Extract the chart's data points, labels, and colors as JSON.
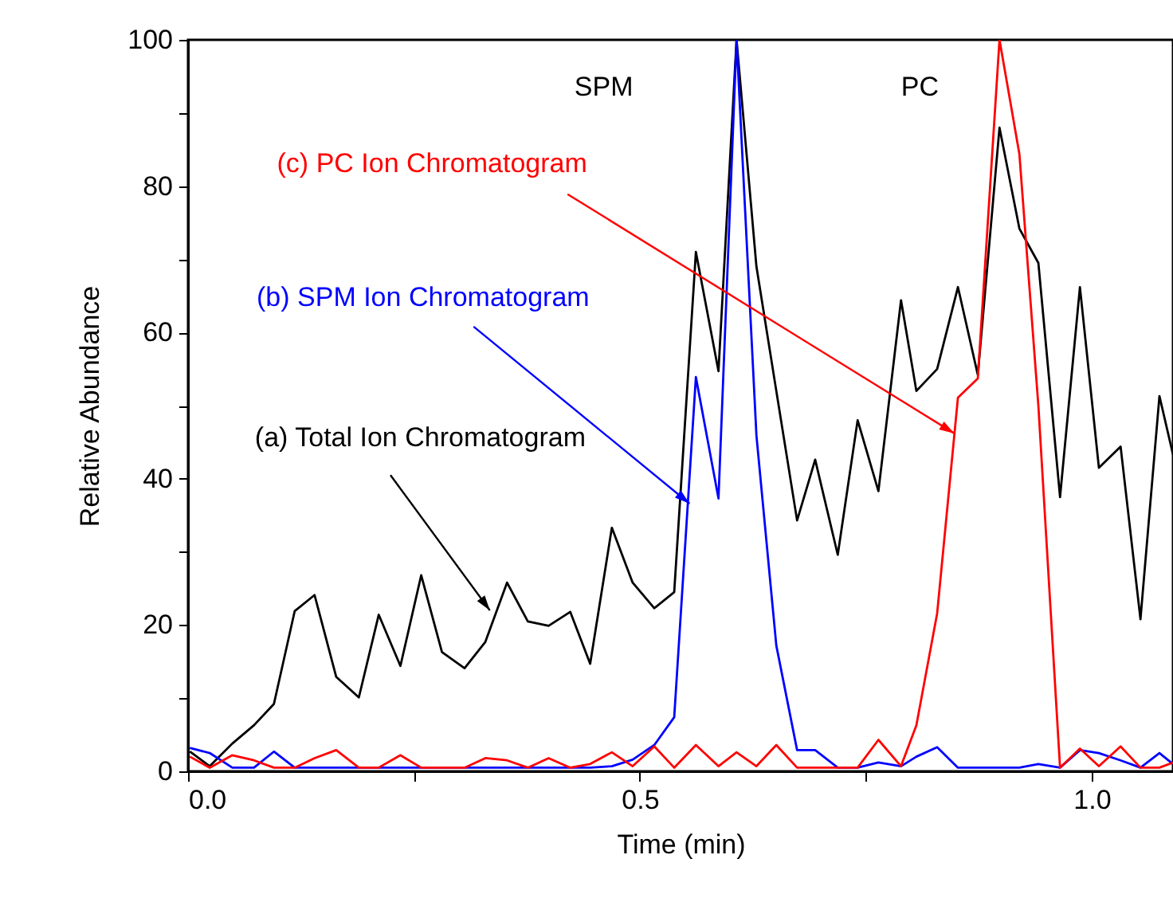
{
  "chart_data": {
    "type": "line",
    "xlabel": "Time (min)",
    "ylabel": "Relative Abundance",
    "x": [
      0.002,
      0.024,
      0.049,
      0.073,
      0.095,
      0.118,
      0.14,
      0.164,
      0.189,
      0.211,
      0.235,
      0.258,
      0.281,
      0.306,
      0.329,
      0.353,
      0.376,
      0.399,
      0.423,
      0.445,
      0.469,
      0.492,
      0.516,
      0.538,
      0.562,
      0.587,
      0.607,
      0.629,
      0.651,
      0.674,
      0.694,
      0.719,
      0.741,
      0.764,
      0.789,
      0.806,
      0.829,
      0.852,
      0.874,
      0.898,
      0.92,
      0.941,
      0.965,
      0.987,
      1.008,
      1.032,
      1.054,
      1.075,
      1.09
    ],
    "series": [
      {
        "color": "#000000",
        "values": [
          2.7,
          0.7,
          3.8,
          6.3,
          9.2,
          21.9,
          24.1,
          12.9,
          10.1,
          21.4,
          14.4,
          26.8,
          16.3,
          14.1,
          17.7,
          25.8,
          20.5,
          19.9,
          21.8,
          14.7,
          33.3,
          25.8,
          22.3,
          24.5,
          71,
          54.7,
          100,
          69,
          52,
          34.3,
          42.6,
          29.6,
          48,
          38.3,
          64.4,
          52,
          55,
          66.2,
          54.2,
          88,
          74.2,
          69.5,
          37.5,
          66.2,
          41.5,
          44.4,
          20.8,
          51.3,
          43.3
        ]
      },
      {
        "color": "#0000ff",
        "values": [
          3.2,
          2.5,
          0.5,
          0.5,
          2.7,
          0.5,
          0.5,
          0.5,
          0.5,
          0.5,
          0.5,
          0.5,
          0.5,
          0.5,
          0.5,
          0.5,
          0.5,
          0.5,
          0.5,
          0.5,
          0.7,
          1.6,
          3.6,
          7.4,
          53.9,
          37.3,
          100,
          45.9,
          17.2,
          2.9,
          2.9,
          0.5,
          0.5,
          1.2,
          0.7,
          2,
          3.3,
          0.5,
          0.5,
          0.5,
          0.5,
          1,
          0.5,
          2.9,
          2.5,
          1.5,
          0.5,
          2.5,
          1
        ]
      },
      {
        "color": "#ff0000",
        "values": [
          2,
          0.5,
          2.2,
          1.5,
          0.5,
          0.5,
          1.8,
          2.9,
          0.5,
          0.5,
          2.2,
          0.5,
          0.5,
          0.5,
          1.8,
          1.5,
          0.5,
          1.8,
          0.5,
          1,
          2.6,
          0.7,
          3.4,
          0.5,
          3.6,
          0.7,
          2.6,
          0.7,
          3.6,
          0.5,
          0.5,
          0.5,
          0.5,
          4.3,
          0.7,
          6.3,
          21.6,
          51.1,
          53.7,
          100,
          84.4,
          50,
          0.5,
          3.1,
          0.7,
          3.4,
          0.5,
          0.5,
          1.2
        ]
      }
    ],
    "xlim": [
      0,
      1.09
    ],
    "xticks": [
      {
        "value": 0,
        "label": "0.0"
      },
      {
        "value": 0.25,
        "label": null
      },
      {
        "value": 0.5,
        "label": "0.5"
      },
      {
        "value": 0.75,
        "label": null
      },
      {
        "value": 1,
        "label": "1.0"
      }
    ],
    "ylim": [
      0,
      100
    ],
    "yticks": [
      0,
      {
        "value": 10,
        "label": null
      },
      20,
      {
        "value": 30,
        "label": null
      },
      40,
      {
        "value": 50,
        "label": null
      },
      60,
      {
        "value": 70,
        "label": null
      },
      80,
      {
        "value": 90,
        "label": null
      },
      100
    ],
    "grid": false,
    "marker": "none",
    "line_style": "solid",
    "annotations": [
      {
        "text": "(a) Total Ion Chromatogram",
        "x": 0.334,
        "y": 22
      },
      {
        "text": "(b) SPM Ion Chromatogram",
        "x": 0.555,
        "y": 36.6
      },
      {
        "text": "(c) PC Ion Chromatogram",
        "x": 0.848,
        "y": 46.2
      },
      "SPM",
      "PC"
    ]
  }
}
